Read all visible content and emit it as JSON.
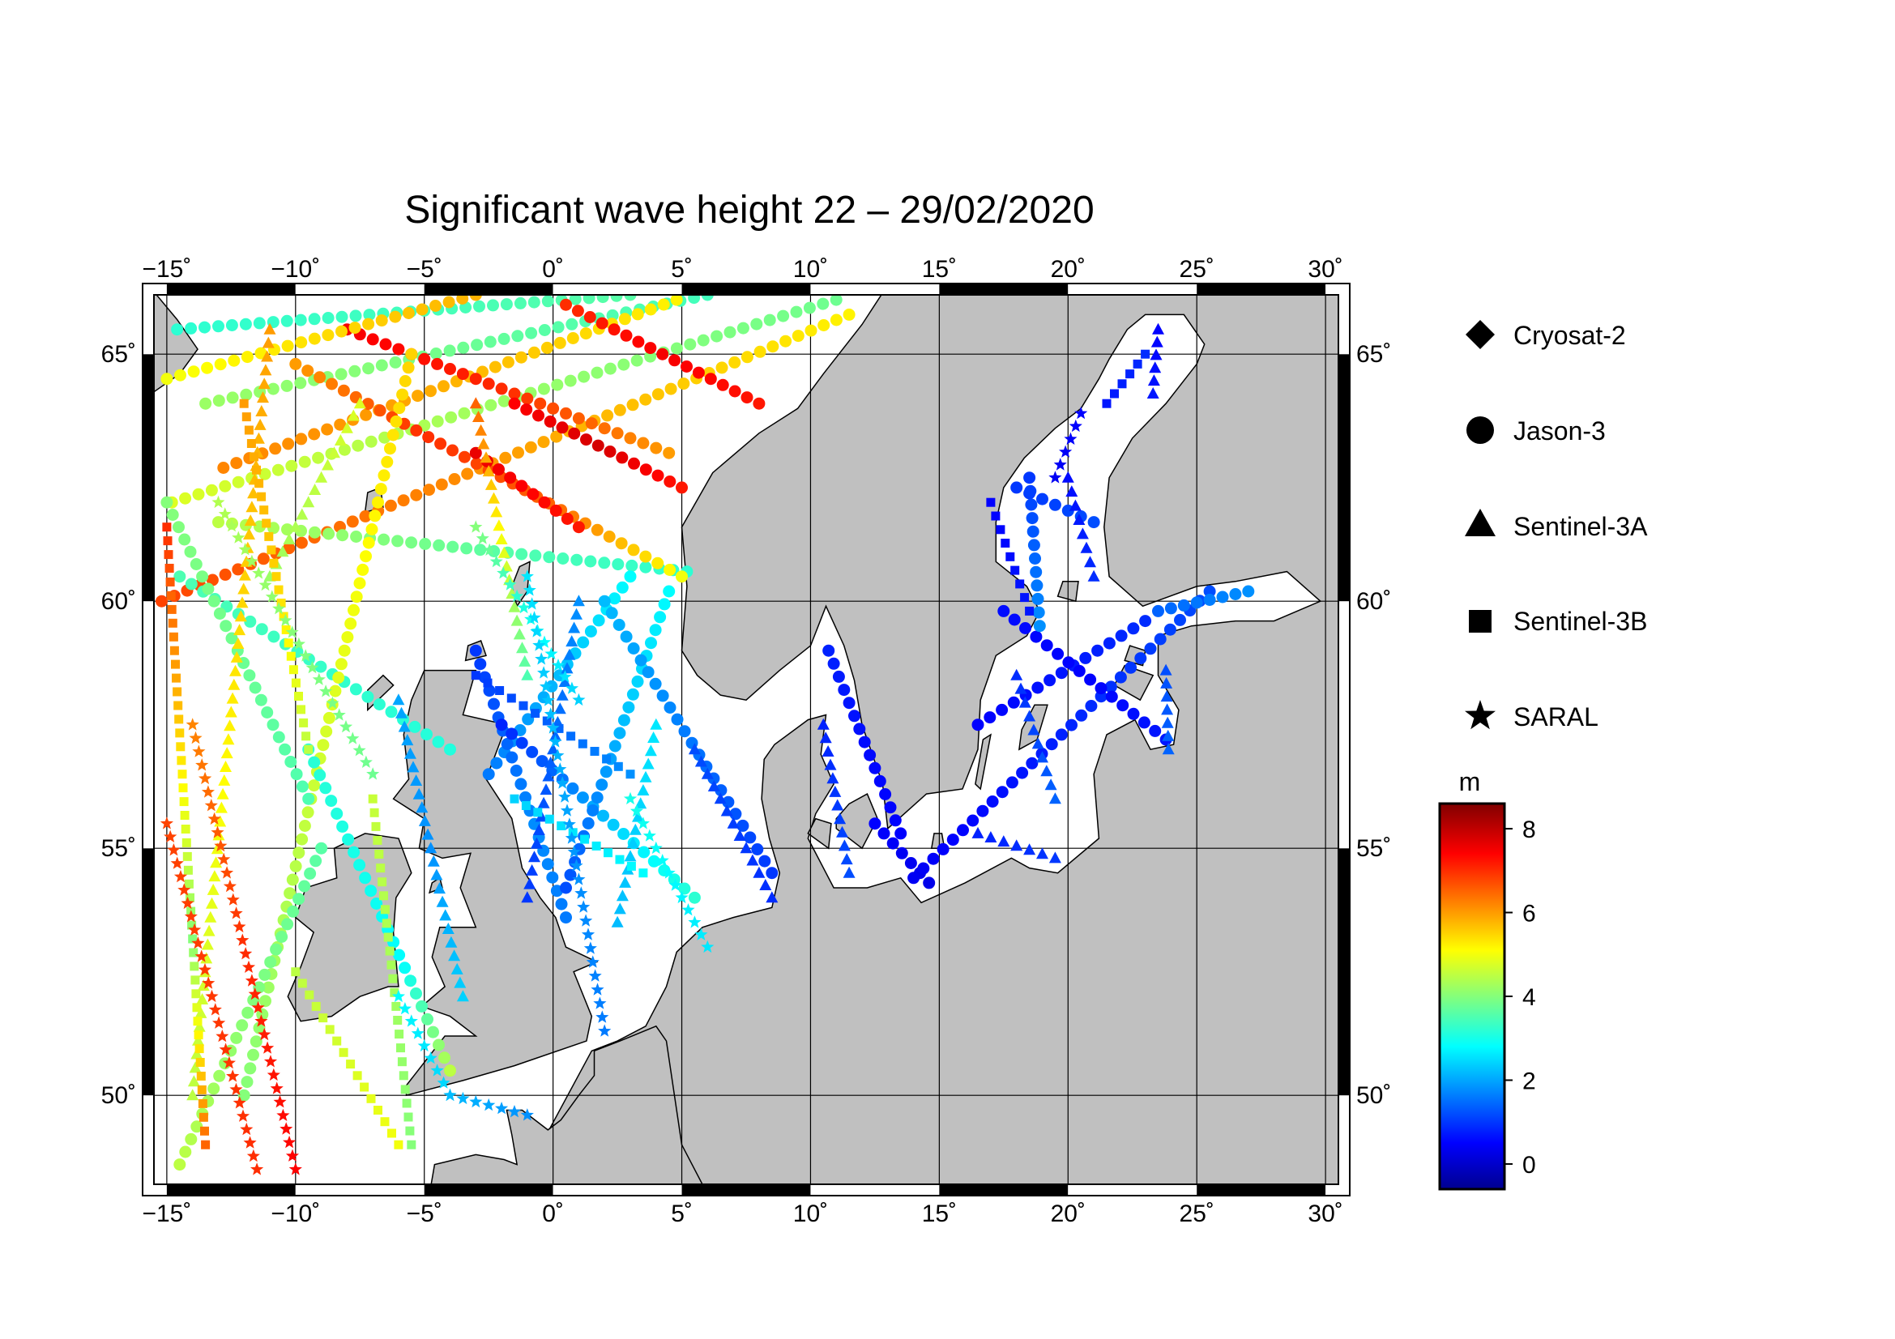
{
  "title": "Significant wave height 22 – 29/02/2020",
  "map": {
    "lon_range": [
      -15.5,
      30.5
    ],
    "lat_range": [
      48.2,
      66.2
    ],
    "lon_ticks": [
      {
        "value": -15,
        "label": "−15˚"
      },
      {
        "value": -10,
        "label": "−10˚"
      },
      {
        "value": -5,
        "label": "−5˚"
      },
      {
        "value": 0,
        "label": "0˚"
      },
      {
        "value": 5,
        "label": "5˚"
      },
      {
        "value": 10,
        "label": "10˚"
      },
      {
        "value": 15,
        "label": "15˚"
      },
      {
        "value": 20,
        "label": "20˚"
      },
      {
        "value": 25,
        "label": "25˚"
      },
      {
        "value": 30,
        "label": "30˚"
      }
    ],
    "lat_ticks": [
      {
        "value": 50,
        "label": "50˚"
      },
      {
        "value": 55,
        "label": "55˚"
      },
      {
        "value": 60,
        "label": "60˚"
      },
      {
        "value": 65,
        "label": "65˚"
      }
    ],
    "land_color": "#c0c0c0",
    "sea_color": "#ffffff",
    "grid": true
  },
  "legend": {
    "items": [
      {
        "symbol": "diamond",
        "label": "Cryosat-2"
      },
      {
        "symbol": "circle",
        "label": "Jason-3"
      },
      {
        "symbol": "triangle",
        "label": "Sentinel-3A"
      },
      {
        "symbol": "square",
        "label": "Sentinel-3B"
      },
      {
        "symbol": "star",
        "label": "SARAL"
      }
    ]
  },
  "colorbar": {
    "unit": "m",
    "min": -0.6,
    "max": 8.6,
    "ticks": [
      {
        "value": 0,
        "label": "0"
      },
      {
        "value": 2,
        "label": "2"
      },
      {
        "value": 4,
        "label": "4"
      },
      {
        "value": 6,
        "label": "6"
      },
      {
        "value": 8,
        "label": "8"
      }
    ],
    "stops": [
      "#00008f",
      "#0000ff",
      "#00ffff",
      "#ffff00",
      "#ff0000",
      "#800000"
    ]
  },
  "chart_data": {
    "type": "scatter",
    "title": "Significant wave height 22 – 29/02/2020",
    "xlabel": "",
    "ylabel": "",
    "x_unit": "degrees longitude",
    "y_unit": "degrees latitude",
    "color_unit": "m",
    "xlim": [
      -15.5,
      30.5
    ],
    "ylim": [
      48.2,
      66.2
    ],
    "tracks": [
      {
        "satellite": "Jason-3",
        "symbol": "circle",
        "from": [
          -15.2,
          60.0
        ],
        "to": [
          11.5,
          65.8
        ],
        "values": [
          6.8,
          6.5,
          6.2,
          5.8,
          5.5,
          5.2
        ]
      },
      {
        "satellite": "Jason-3",
        "symbol": "circle",
        "from": [
          -14.8,
          62.0
        ],
        "to": [
          11.0,
          66.1
        ],
        "values": [
          4.8,
          4.5,
          4.2,
          4.0,
          3.8
        ]
      },
      {
        "satellite": "Jason-3",
        "symbol": "circle",
        "from": [
          -13.5,
          64.0
        ],
        "to": [
          6.0,
          66.2
        ],
        "values": [
          4.2,
          4.0,
          3.6,
          3.4
        ]
      },
      {
        "satellite": "Jason-3",
        "symbol": "circle",
        "from": [
          -14.6,
          65.5
        ],
        "to": [
          3.0,
          66.2
        ],
        "values": [
          3.2,
          3.4,
          3.6
        ]
      },
      {
        "satellite": "Jason-3",
        "symbol": "circle",
        "from": [
          -13.0,
          61.6
        ],
        "to": [
          5.2,
          60.6
        ],
        "values": [
          4.5,
          4.0,
          3.5,
          3.2
        ]
      },
      {
        "satellite": "Jason-3",
        "symbol": "circle",
        "from": [
          -12.8,
          62.7
        ],
        "to": [
          4.8,
          66.1
        ],
        "values": [
          6.2,
          6.0,
          5.6,
          5.2
        ]
      },
      {
        "satellite": "Jason-3",
        "symbol": "circle",
        "from": [
          -14.5,
          60.5
        ],
        "to": [
          -4.0,
          57.0
        ],
        "values": [
          3.5,
          3.3,
          3.1
        ]
      },
      {
        "satellite": "Jason-3",
        "symbol": "circle",
        "from": [
          -10.0,
          64.8
        ],
        "to": [
          5.0,
          60.5
        ],
        "values": [
          6.0,
          7.0,
          6.5,
          5.0
        ]
      },
      {
        "satellite": "Jason-3",
        "symbol": "circle",
        "from": [
          -8.0,
          65.5
        ],
        "to": [
          4.5,
          63.0
        ],
        "values": [
          7.5,
          7.0,
          6.0
        ]
      },
      {
        "satellite": "Jason-3",
        "symbol": "circle",
        "from": [
          0.5,
          66.0
        ],
        "to": [
          8.0,
          64.0
        ],
        "values": [
          7.0,
          7.5,
          7.2
        ]
      },
      {
        "satellite": "Jason-3",
        "symbol": "circle",
        "from": [
          -1.5,
          64.0
        ],
        "to": [
          5.0,
          62.3
        ],
        "values": [
          7.4,
          7.8,
          7.2
        ]
      },
      {
        "satellite": "Jason-3",
        "symbol": "circle",
        "from": [
          -3.0,
          63.0
        ],
        "to": [
          1.0,
          61.5
        ],
        "values": [
          7.6,
          7.2
        ]
      },
      {
        "satellite": "Jason-3",
        "symbol": "circle",
        "from": [
          -15.0,
          64.5
        ],
        "to": [
          -3.0,
          66.2
        ],
        "values": [
          5.0,
          5.4,
          5.8
        ]
      },
      {
        "satellite": "Jason-3",
        "symbol": "circle",
        "from": [
          -12.0,
          50.0
        ],
        "to": [
          -5.5,
          65.0
        ],
        "values": [
          4.0,
          4.5,
          5.0,
          5.5
        ]
      },
      {
        "satellite": "Jason-3",
        "symbol": "circle",
        "from": [
          -15.0,
          62.0
        ],
        "to": [
          -9.5,
          56.0
        ],
        "values": [
          4.0,
          3.8,
          3.5
        ]
      },
      {
        "satellite": "Jason-3",
        "symbol": "circle",
        "from": [
          -9.5,
          57.0
        ],
        "to": [
          -4.0,
          50.5
        ],
        "values": [
          3.2,
          3.0,
          2.8,
          4.5
        ]
      },
      {
        "satellite": "Jason-3",
        "symbol": "circle",
        "from": [
          -14.5,
          48.6
        ],
        "to": [
          -9.0,
          55.0
        ],
        "values": [
          4.5,
          4.0,
          3.6
        ]
      },
      {
        "satellite": "Jason-3",
        "symbol": "circle",
        "from": [
          -2.5,
          56.5
        ],
        "to": [
          3.0,
          60.5
        ],
        "values": [
          1.6,
          2.0,
          2.4,
          2.8
        ]
      },
      {
        "satellite": "Jason-3",
        "symbol": "circle",
        "from": [
          -3.0,
          59.0
        ],
        "to": [
          0.5,
          53.6
        ],
        "values": [
          1.0,
          1.4,
          1.8,
          1.6
        ]
      },
      {
        "satellite": "Jason-3",
        "symbol": "circle",
        "from": [
          -2.0,
          57.5
        ],
        "to": [
          5.5,
          54.0
        ],
        "values": [
          0.8,
          1.6,
          2.6,
          3.2
        ]
      },
      {
        "satellite": "Jason-3",
        "symbol": "circle",
        "from": [
          0.5,
          54.2
        ],
        "to": [
          4.5,
          60.2
        ],
        "values": [
          1.2,
          1.8,
          2.4,
          2.8
        ]
      },
      {
        "satellite": "Jason-3",
        "symbol": "circle",
        "from": [
          2.0,
          60.0
        ],
        "to": [
          8.5,
          54.5
        ],
        "values": [
          2.2,
          1.8,
          1.4,
          1.0
        ]
      },
      {
        "satellite": "Jason-3",
        "symbol": "circle",
        "from": [
          10.7,
          59.0
        ],
        "to": [
          13.5,
          55.3
        ],
        "values": [
          0.8,
          0.6,
          0.5
        ]
      },
      {
        "satellite": "Jason-3",
        "symbol": "circle",
        "from": [
          12.5,
          55.5
        ],
        "to": [
          14.6,
          54.3
        ],
        "values": [
          0.5,
          0.3
        ]
      },
      {
        "satellite": "Jason-3",
        "symbol": "circle",
        "from": [
          14.0,
          54.4
        ],
        "to": [
          25.5,
          60.2
        ],
        "values": [
          0.4,
          0.6,
          0.8,
          1.0,
          1.2
        ]
      },
      {
        "satellite": "Jason-3",
        "symbol": "circle",
        "from": [
          16.5,
          57.5
        ],
        "to": [
          23.0,
          59.6
        ],
        "values": [
          0.5,
          0.7,
          0.9
        ]
      },
      {
        "satellite": "Jason-3",
        "symbol": "circle",
        "from": [
          17.5,
          59.8
        ],
        "to": [
          23.8,
          57.2
        ],
        "values": [
          0.6,
          0.5,
          0.7
        ]
      },
      {
        "satellite": "Jason-3",
        "symbol": "circle",
        "from": [
          18.0,
          62.3
        ],
        "to": [
          21.0,
          61.6
        ],
        "values": [
          1.0,
          1.2
        ]
      },
      {
        "satellite": "Jason-3",
        "symbol": "circle",
        "from": [
          18.5,
          62.5
        ],
        "to": [
          18.9,
          59.5
        ],
        "values": [
          1.0,
          1.4,
          1.8
        ]
      },
      {
        "satellite": "Jason-3",
        "symbol": "circle",
        "from": [
          23.5,
          59.8
        ],
        "to": [
          27.0,
          60.2
        ],
        "values": [
          1.4,
          1.8
        ]
      },
      {
        "satellite": "Sentinel-3A",
        "symbol": "triangle",
        "from": [
          -14.0,
          50.0
        ],
        "to": [
          -11.0,
          65.5
        ],
        "values": [
          4.5,
          5.0,
          5.5,
          6.0
        ]
      },
      {
        "satellite": "Sentinel-3A",
        "symbol": "triangle",
        "from": [
          -11.0,
          60.5
        ],
        "to": [
          -7.5,
          64.0
        ],
        "values": [
          4.2,
          4.8
        ]
      },
      {
        "satellite": "Sentinel-3A",
        "symbol": "triangle",
        "from": [
          -6.0,
          58.0
        ],
        "to": [
          -3.5,
          52.0
        ],
        "values": [
          2.0,
          1.8,
          2.4
        ]
      },
      {
        "satellite": "Sentinel-3A",
        "symbol": "triangle",
        "from": [
          -3.0,
          64.0
        ],
        "to": [
          -1.0,
          58.5
        ],
        "values": [
          6.5,
          5.0,
          3.5
        ]
      },
      {
        "satellite": "Sentinel-3A",
        "symbol": "triangle",
        "from": [
          1.0,
          60.0
        ],
        "to": [
          -1.0,
          54.0
        ],
        "values": [
          1.8,
          1.4,
          1.0
        ]
      },
      {
        "satellite": "Sentinel-3A",
        "symbol": "triangle",
        "from": [
          4.0,
          57.5
        ],
        "to": [
          2.5,
          53.5
        ],
        "values": [
          2.6,
          2.2
        ]
      },
      {
        "satellite": "Sentinel-3A",
        "symbol": "triangle",
        "from": [
          5.5,
          57.0
        ],
        "to": [
          8.5,
          54.0
        ],
        "values": [
          1.2,
          0.9
        ]
      },
      {
        "satellite": "Sentinel-3A",
        "symbol": "triangle",
        "from": [
          10.5,
          57.5
        ],
        "to": [
          11.5,
          54.5
        ],
        "values": [
          0.8,
          1.2
        ]
      },
      {
        "satellite": "Sentinel-3A",
        "symbol": "triangle",
        "from": [
          16.5,
          55.3
        ],
        "to": [
          19.5,
          54.8
        ],
        "values": [
          0.8,
          1.0
        ]
      },
      {
        "satellite": "Sentinel-3A",
        "symbol": "triangle",
        "from": [
          18.0,
          58.5
        ],
        "to": [
          19.5,
          56.0
        ],
        "values": [
          0.9,
          1.4
        ]
      },
      {
        "satellite": "Sentinel-3A",
        "symbol": "triangle",
        "from": [
          20.0,
          62.5
        ],
        "to": [
          21.0,
          60.5
        ],
        "values": [
          0.6,
          0.9
        ]
      },
      {
        "satellite": "Sentinel-3A",
        "symbol": "triangle",
        "from": [
          23.5,
          65.5
        ],
        "to": [
          23.3,
          64.2
        ],
        "values": [
          0.5,
          0.7
        ]
      },
      {
        "satellite": "Sentinel-3A",
        "symbol": "triangle",
        "from": [
          23.8,
          58.6
        ],
        "to": [
          23.9,
          57.0
        ],
        "values": [
          1.2,
          1.4
        ]
      },
      {
        "satellite": "Sentinel-3B",
        "symbol": "square",
        "from": [
          -15.0,
          61.5
        ],
        "to": [
          -13.5,
          49.0
        ],
        "values": [
          7.0,
          5.5,
          4.0,
          6.5
        ]
      },
      {
        "satellite": "Sentinel-3B",
        "symbol": "square",
        "from": [
          -12.0,
          64.0
        ],
        "to": [
          -9.5,
          57.0
        ],
        "values": [
          6.0,
          5.5,
          4.5
        ]
      },
      {
        "satellite": "Sentinel-3B",
        "symbol": "square",
        "from": [
          -10.0,
          52.5
        ],
        "to": [
          -6.0,
          49.0
        ],
        "values": [
          4.5,
          5.0
        ]
      },
      {
        "satellite": "Sentinel-3B",
        "symbol": "square",
        "from": [
          -7.0,
          56.0
        ],
        "to": [
          -5.5,
          49.0
        ],
        "values": [
          4.6,
          4.0
        ]
      },
      {
        "satellite": "Sentinel-3B",
        "symbol": "square",
        "from": [
          -3.0,
          58.5
        ],
        "to": [
          3.0,
          56.5
        ],
        "values": [
          1.0,
          1.8
        ]
      },
      {
        "satellite": "Sentinel-3B",
        "symbol": "square",
        "from": [
          -1.5,
          56.0
        ],
        "to": [
          3.5,
          54.5
        ],
        "values": [
          2.4,
          2.8
        ]
      },
      {
        "satellite": "Sentinel-3B",
        "symbol": "square",
        "from": [
          17.0,
          62.0
        ],
        "to": [
          18.5,
          59.8
        ],
        "values": [
          0.5,
          0.7
        ]
      },
      {
        "satellite": "Sentinel-3B",
        "symbol": "square",
        "from": [
          21.5,
          64.0
        ],
        "to": [
          23.0,
          65.0
        ],
        "values": [
          0.7,
          0.9
        ]
      },
      {
        "satellite": "SARAL",
        "symbol": "star",
        "from": [
          -14.0,
          57.5
        ],
        "to": [
          -10.0,
          48.5
        ],
        "values": [
          6.2,
          7.0,
          7.4
        ]
      },
      {
        "satellite": "SARAL",
        "symbol": "star",
        "from": [
          -15.0,
          55.5
        ],
        "to": [
          -11.5,
          48.5
        ],
        "values": [
          6.8,
          7.0
        ]
      },
      {
        "satellite": "SARAL",
        "symbol": "star",
        "from": [
          -13.0,
          62.0
        ],
        "to": [
          -7.0,
          56.5
        ],
        "values": [
          4.4,
          4.0,
          3.8
        ]
      },
      {
        "satellite": "SARAL",
        "symbol": "star",
        "from": [
          -6.0,
          52.0
        ],
        "to": [
          -4.0,
          50.0
        ],
        "values": [
          2.8,
          2.4
        ]
      },
      {
        "satellite": "SARAL",
        "symbol": "star",
        "from": [
          -3.0,
          61.5
        ],
        "to": [
          1.0,
          58.0
        ],
        "values": [
          4.0,
          3.0,
          2.4
        ]
      },
      {
        "satellite": "SARAL",
        "symbol": "star",
        "from": [
          -1.0,
          60.5
        ],
        "to": [
          2.0,
          51.3
        ],
        "values": [
          2.6,
          2.2,
          1.8,
          1.6
        ]
      },
      {
        "satellite": "SARAL",
        "symbol": "star",
        "from": [
          3.0,
          56.0
        ],
        "to": [
          6.0,
          53.0
        ],
        "values": [
          3.0,
          2.6
        ]
      },
      {
        "satellite": "SARAL",
        "symbol": "star",
        "from": [
          -4.0,
          50.0
        ],
        "to": [
          -1.0,
          49.6
        ],
        "values": [
          2.2,
          1.8
        ]
      },
      {
        "satellite": "SARAL",
        "symbol": "star",
        "from": [
          19.5,
          62.5
        ],
        "to": [
          20.5,
          63.8
        ],
        "values": [
          0.4,
          0.5
        ]
      }
    ]
  }
}
